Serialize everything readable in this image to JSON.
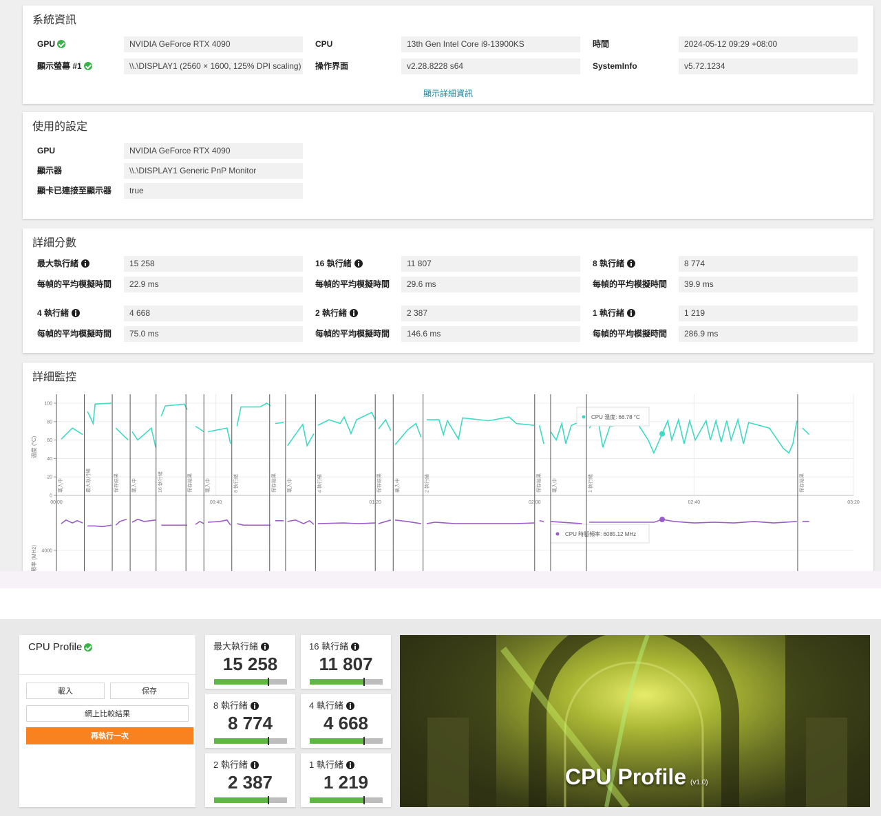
{
  "system_info": {
    "title": "系統資訊",
    "items": [
      {
        "label": "GPU",
        "value": "NVIDIA GeForce RTX 4090",
        "check": true
      },
      {
        "label": "顯示螢幕 #1",
        "value": "\\\\.\\DISPLAY1 (2560 × 1600, 125% DPI scaling)",
        "check": true
      },
      {
        "label": "CPU",
        "value": "13th Gen Intel Core i9-13900KS",
        "check": false
      },
      {
        "label": "操作界面",
        "value": "v2.28.8228 s64",
        "check": false
      },
      {
        "label": "時間",
        "value": "2024-05-12 09:29 +08:00",
        "check": false
      },
      {
        "label": "SystemInfo",
        "value": "v5.72.1234",
        "check": false
      }
    ],
    "link": "顯示詳細資訊"
  },
  "settings": {
    "title": "使用的設定",
    "items": [
      {
        "label": "GPU",
        "value": "NVIDIA GeForce RTX 4090"
      },
      {
        "label": "顯示器",
        "value": "\\\\.\\DISPLAY1 Generic PnP Monitor"
      },
      {
        "label": "顯卡已連接至顯示器",
        "value": "true"
      }
    ]
  },
  "scores": {
    "title": "詳細分數",
    "groups": [
      {
        "label": "最大執行緒",
        "score": "15 258",
        "time_label": "每幀的平均模擬時間",
        "time": "22.9 ms"
      },
      {
        "label": "16 執行緒",
        "score": "11 807",
        "time_label": "每幀的平均模擬時間",
        "time": "29.6 ms"
      },
      {
        "label": "8 執行緒",
        "score": "8 774",
        "time_label": "每幀的平均模擬時間",
        "time": "39.9 ms"
      },
      {
        "label": "4 執行緒",
        "score": "4 668",
        "time_label": "每幀的平均模擬時間",
        "time": "75.0 ms"
      },
      {
        "label": "2 執行緒",
        "score": "2 387",
        "time_label": "每幀的平均模擬時間",
        "time": "146.6 ms"
      },
      {
        "label": "1 執行緒",
        "score": "1 219",
        "time_label": "每幀的平均模擬時間",
        "time": "286.9 ms"
      }
    ]
  },
  "monitoring": {
    "title": "詳細監控",
    "xlim": [
      0,
      200
    ],
    "xticks": [
      {
        "value": 0,
        "label": "00:00"
      },
      {
        "value": 40,
        "label": "00:40"
      },
      {
        "value": 80,
        "label": "01:20"
      },
      {
        "value": 120,
        "label": "02:00"
      },
      {
        "value": 160,
        "label": "02:40"
      },
      {
        "value": 200,
        "label": "03:20"
      }
    ],
    "markers": [
      {
        "time": 0,
        "label": "載入中"
      },
      {
        "time": 7,
        "label": "最大執行緒"
      },
      {
        "time": 14,
        "label": "保存結果"
      },
      {
        "time": 18.5,
        "label": "載入中"
      },
      {
        "time": 25,
        "label": "16 執行緒"
      },
      {
        "time": 32.5,
        "label": "保存結果"
      },
      {
        "time": 37,
        "label": "載入中"
      },
      {
        "time": 44,
        "label": "8 執行緒"
      },
      {
        "time": 53.5,
        "label": "保存結果"
      },
      {
        "time": 57.5,
        "label": "載入中"
      },
      {
        "time": 65,
        "label": "4 執行緒"
      },
      {
        "time": 80,
        "label": "保存結果"
      },
      {
        "time": 84.5,
        "label": "載入中"
      },
      {
        "time": 92,
        "label": "2 執行緒"
      },
      {
        "time": 120,
        "label": "保存結果"
      },
      {
        "time": 124,
        "label": "載入中"
      },
      {
        "time": 133,
        "label": "1 執行緒"
      },
      {
        "time": 186,
        "label": "保存結果"
      }
    ],
    "temperature": {
      "type": "line",
      "ylabel": "溫度 (°C)",
      "ylim": [
        0,
        100
      ],
      "yticks": [
        0,
        20,
        40,
        60,
        80,
        100
      ],
      "grid": true,
      "color": "#3ddbc3",
      "x": [
        1.2,
        4.0,
        6.6,
        null,
        7.8,
        9.2,
        9.7,
        13.8,
        null,
        14.9,
        18.0,
        null,
        19.0,
        20.4,
        23.8,
        24.9,
        null,
        26.3,
        27.3,
        32.1,
        32.8,
        null,
        34.9,
        37.0,
        null,
        38.0,
        42.8,
        43.7,
        null,
        45.3,
        46.3,
        51.1,
        52.8,
        53.7,
        null,
        54.9,
        57.0,
        null,
        58.0,
        61.8,
        62.9,
        64.6,
        null,
        65.6,
        68.4,
        71.2,
        72.2,
        73.9,
        75.3,
        79.1,
        80.0,
        null,
        80.8,
        82.6,
        83.9,
        null,
        85.0,
        88.1,
        90.2,
        91.5,
        null,
        92.9,
        96.0,
        97.1,
        98.1,
        100.9,
        101.9,
        108.5,
        113.6,
        115.4,
        119.9,
        null,
        121.2,
        122.3,
        null,
        124.0,
        125.4,
        126.8,
        127.8,
        129.2,
        131.9,
        null,
        133.7,
        135.8,
        137.1,
        138.9,
        145.8,
        148.5,
        149.9,
        152.0,
        153.4,
        154.4,
        156.1,
        157.5,
        158.9,
        160.3,
        163.0,
        164.1,
        165.5,
        166.8,
        168.2,
        169.3,
        171.0,
        172.4,
        173.7,
        178.9,
        182.4,
        183.8,
        184.8,
        185.8,
        null,
        187.2,
        188.9
      ],
      "values": [
        61,
        73,
        66,
        null,
        91,
        78,
        99,
        100,
        null,
        73,
        60,
        null,
        69,
        60,
        73,
        52,
        null,
        86,
        97,
        99,
        93,
        null,
        75,
        69,
        null,
        69,
        73,
        56,
        null,
        75,
        96,
        96,
        100,
        97,
        null,
        78,
        79,
        null,
        54,
        77,
        54,
        67,
        null,
        76,
        82,
        78,
        85,
        67,
        82,
        90,
        82,
        null,
        72,
        82,
        70,
        null,
        55,
        71,
        78,
        63,
        null,
        82,
        82,
        66,
        81,
        61,
        84,
        81,
        85,
        78,
        76,
        null,
        76,
        56,
        null,
        69,
        60,
        78,
        56,
        76,
        81,
        null,
        73,
        85,
        52,
        75,
        78,
        60,
        46,
        67,
        81,
        60,
        82,
        56,
        81,
        60,
        81,
        60,
        81,
        58,
        81,
        60,
        82,
        56,
        79,
        73,
        51,
        46,
        56,
        81,
        null,
        73,
        66
      ],
      "tooltip": {
        "text": "CPU 溫度: 66.78 °C",
        "x": 152.0,
        "value": 66.78
      }
    },
    "frequency": {
      "type": "line",
      "ylabel": "頻率 (MHz)",
      "ylim": [
        2600,
        6550
      ],
      "yticks": [
        4000
      ],
      "grid": true,
      "color": "#9b5cc9",
      "x": [
        1.2,
        2.4,
        4.0,
        5.2,
        6.6,
        null,
        7.8,
        9.7,
        11.5,
        13.8,
        null,
        14.9,
        15.9,
        17.6,
        null,
        19.0,
        20.4,
        22.0,
        24.9,
        null,
        26.3,
        32.8,
        null,
        34.9,
        36.0,
        37.0,
        null,
        38.0,
        41.0,
        42.8,
        43.7,
        null,
        45.3,
        47.0,
        53.7,
        null,
        54.9,
        57.0,
        null,
        58.0,
        60.0,
        62.0,
        63.5,
        64.6,
        null,
        65.6,
        72.0,
        76.0,
        80.0,
        null,
        80.8,
        83.9,
        null,
        85.0,
        88.0,
        91.5,
        null,
        92.9,
        95.0,
        100.0,
        110.0,
        115.0,
        119.9,
        null,
        121.2,
        122.3,
        null,
        124.0,
        131.9,
        null,
        133.7,
        150.0,
        152.0,
        155.0,
        160.0,
        165.0,
        170.0,
        175.0,
        180.0,
        185.8,
        null,
        187.2,
        188.9
      ],
      "values": [
        5800,
        6050,
        5850,
        6000,
        5850,
        null,
        5650,
        5650,
        5600,
        5700,
        null,
        5700,
        5950,
        6100,
        null,
        5900,
        6100,
        5950,
        6050,
        null,
        5700,
        5700,
        null,
        5750,
        5950,
        5800,
        null,
        5900,
        5950,
        6050,
        5700,
        null,
        5800,
        5700,
        5700,
        null,
        6000,
        6000,
        null,
        5950,
        6050,
        5800,
        6000,
        5750,
        null,
        5800,
        5850,
        5800,
        5850,
        null,
        5800,
        6050,
        null,
        6050,
        5950,
        5800,
        null,
        5800,
        5900,
        5800,
        5800,
        5800,
        5850,
        null,
        6000,
        5950,
        null,
        5950,
        5800,
        null,
        5900,
        5900,
        6085.12,
        5950,
        5850,
        5900,
        5850,
        5950,
        5850,
        5950,
        null,
        5950,
        5950
      ],
      "tooltip": {
        "text": "CPU 時脈頻率: 6085.12 MHz",
        "x": 152.0,
        "value": 6085.12
      }
    }
  },
  "profile": {
    "title": "CPU Profile",
    "buttons": [
      "載入",
      "保存",
      "網上比較結果",
      "再執行一次"
    ],
    "banner_title": "CPU Profile",
    "banner_version": "(v1.0)"
  }
}
